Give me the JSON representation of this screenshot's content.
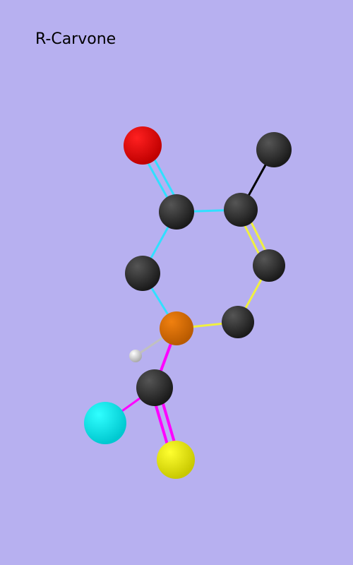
{
  "title": "R-Carvone"
}
